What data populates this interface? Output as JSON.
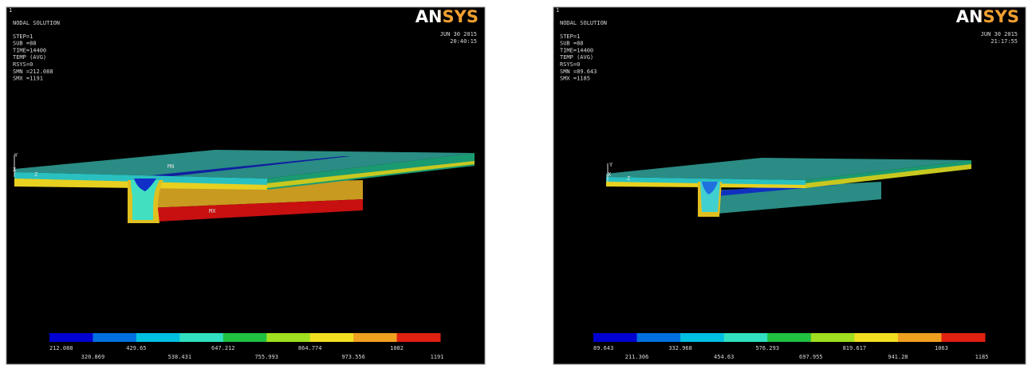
{
  "panels": [
    {
      "index": "1",
      "header": [
        "NODAL SOLUTION",
        "STEP=1",
        "SUB =88",
        "TIME=14400",
        "TEMP     (AVG)",
        "RSYS=0",
        "SMN =212.088",
        "SMX =1191"
      ],
      "logo": "ANSYS",
      "date": "JUN 30 2015",
      "time": "20:40:15",
      "axes": [
        "Y",
        "Z",
        "X"
      ],
      "markers": [
        "MN",
        "MX"
      ],
      "legend_labels": [
        "212.088",
        "320.869",
        "429.65",
        "538.431",
        "647.212",
        "755.993",
        "864.774",
        "973.556",
        "1082",
        "1191"
      ]
    },
    {
      "index": "1",
      "header": [
        "NODAL SOLUTION",
        "STEP=1",
        "SUB =88",
        "TIME=14400",
        "TEMP     (AVG)",
        "RSYS=0",
        "SMN =89.643",
        "SMX =1185"
      ],
      "logo": "ANSYS",
      "date": "JUN 30 2015",
      "time": "21:17:55",
      "axes": [
        "Y",
        "Z",
        "X"
      ],
      "legend_labels": [
        "89.643",
        "211.306",
        "332.968",
        "454.63",
        "576.293",
        "697.955",
        "819.617",
        "941.28",
        "1063",
        "1185"
      ]
    }
  ]
}
